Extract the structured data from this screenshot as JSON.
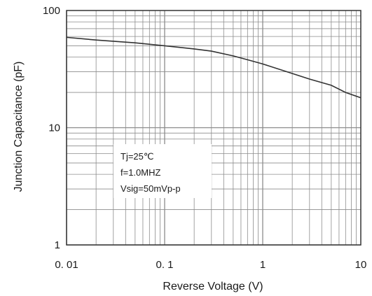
{
  "chart_data": {
    "type": "line",
    "title": "",
    "xlabel": "Reverse Voltage (V)",
    "ylabel": "Junction Capacitance (pF)",
    "xscale": "log",
    "yscale": "log",
    "xlim": [
      0.01,
      10
    ],
    "ylim": [
      1,
      100
    ],
    "x_ticks": [
      {
        "value": 0.01,
        "label": "0. 01"
      },
      {
        "value": 0.1,
        "label": "0. 1"
      },
      {
        "value": 1,
        "label": "1"
      },
      {
        "value": 10,
        "label": "10"
      }
    ],
    "y_ticks": [
      {
        "value": 1,
        "label": "1"
      },
      {
        "value": 10,
        "label": "10"
      },
      {
        "value": 100,
        "label": "100"
      }
    ],
    "grid": true,
    "legend": "none",
    "series": [
      {
        "x": [
          0.01,
          0.02,
          0.05,
          0.1,
          0.2,
          0.3,
          0.5,
          0.7,
          1,
          2,
          3,
          5,
          7,
          10
        ],
        "y": [
          59,
          56,
          53,
          50,
          47,
          45,
          41,
          38,
          35,
          29,
          26,
          23,
          20,
          18
        ]
      }
    ],
    "annotations": [
      "Tj=25℃",
      "f=1.0MHZ",
      "Vsig=50mVp-p"
    ],
    "colors": {
      "line": "#333333",
      "grid": "#8c8c8c",
      "axis": "#333333"
    }
  }
}
